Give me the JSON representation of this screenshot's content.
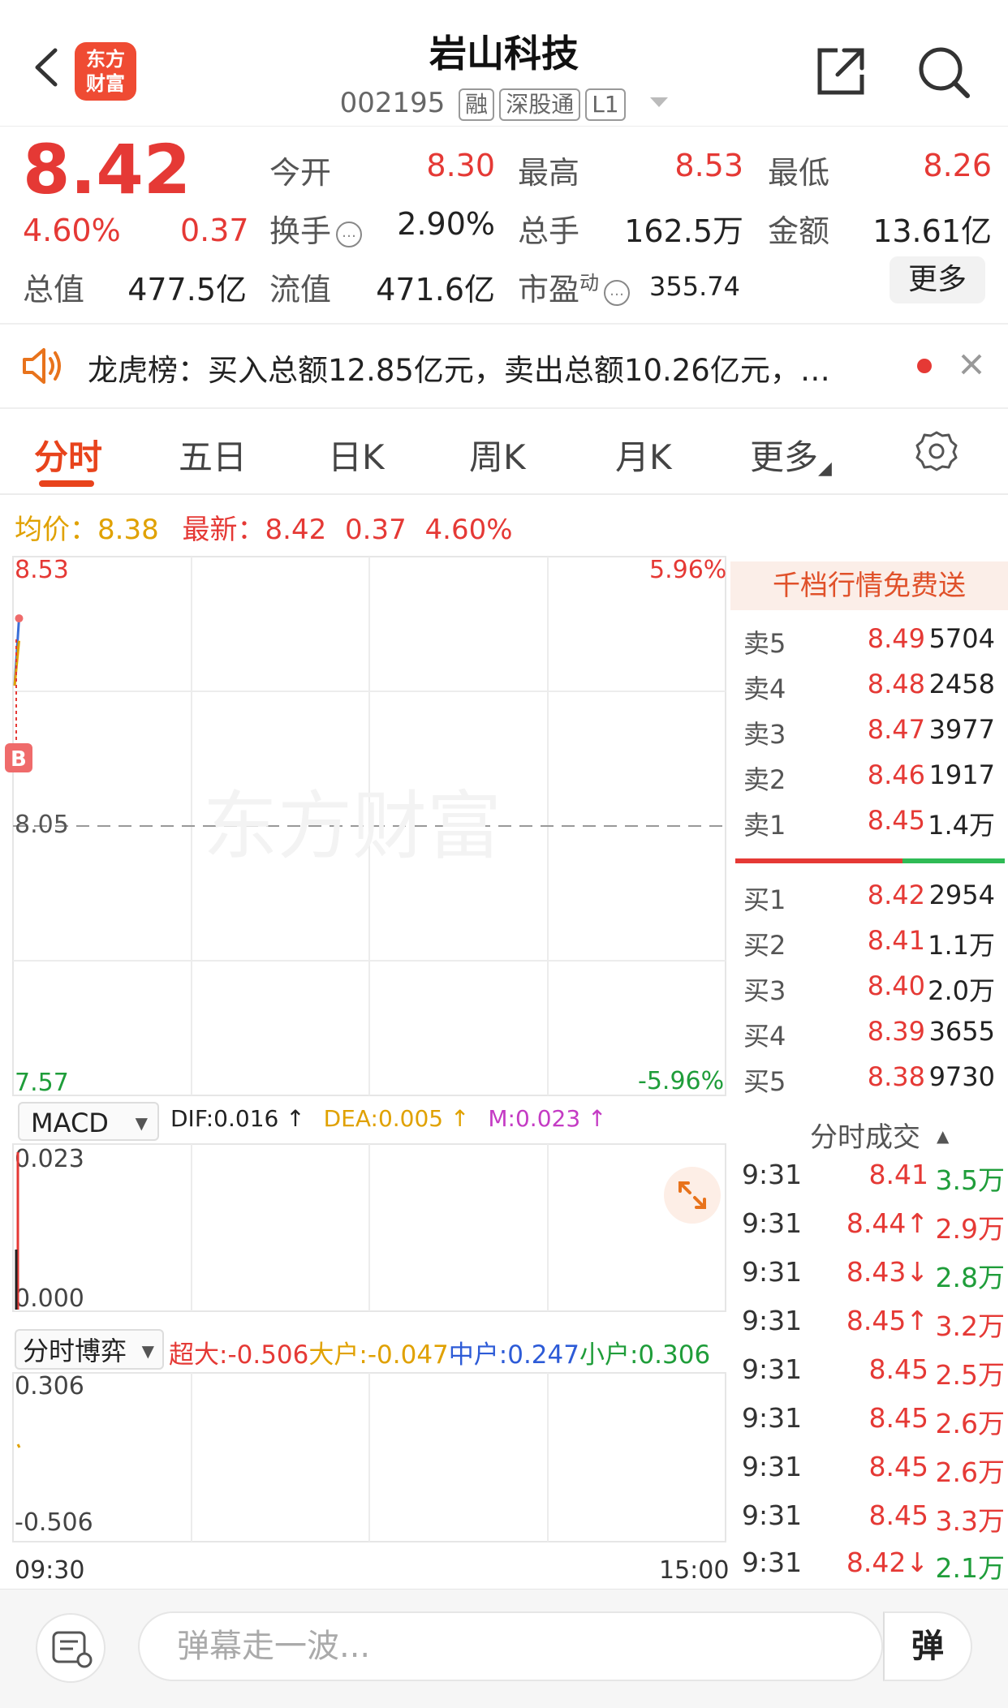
{
  "header": {
    "logo_text_line1": "东方",
    "logo_text_line2": "财富",
    "stock_name": "岩山科技",
    "stock_code": "002195",
    "tags": [
      "融",
      "深股通",
      "L1"
    ]
  },
  "quote": {
    "price": "8.42",
    "change_pct": "4.60%",
    "change": "0.37",
    "open_label": "今开",
    "open": "8.30",
    "high_label": "最高",
    "high": "8.53",
    "low_label": "最低",
    "low": "8.26",
    "turnover_label": "换手",
    "turnover": "2.90%",
    "volume_label": "总手",
    "volume": "162.5万",
    "amount_label": "金额",
    "amount": "13.61亿",
    "mktcap_label": "总值",
    "mktcap": "477.5亿",
    "float_label": "流值",
    "float_cap": "471.6亿",
    "pe_label": "市盈",
    "pe_sup": "动",
    "pe": "355.74",
    "more_label": "更多"
  },
  "notice": {
    "text": "龙虎榜：买入总额12.85亿元，卖出总额10.26亿元，…"
  },
  "tabs": [
    "分时",
    "五日",
    "日K",
    "周K",
    "月K",
    "更多"
  ],
  "avg_row": {
    "avg_label": "均价：",
    "avg": "8.38",
    "latest_label": "最新：",
    "latest": "8.42",
    "change": "0.37",
    "change_pct": "4.60%"
  },
  "chart": {
    "y_max": "8.53",
    "y_mid": "8.05",
    "y_min": "7.57",
    "pct_max": "5.96%",
    "pct_min": "-5.96%",
    "watermark": "东方财富",
    "b_marker": "B"
  },
  "chart_data": {
    "type": "line",
    "ylim": [
      7.57,
      8.53
    ],
    "reference": 8.05,
    "x": [
      "09:30",
      "09:31"
    ],
    "series": [
      {
        "values": [
          8.3,
          8.42
        ]
      },
      {
        "values": [
          8.3,
          8.38
        ]
      }
    ]
  },
  "macd": {
    "selector": "MACD",
    "dif": "DIF:0.016 ↑",
    "dea": "DEA:0.005 ↑",
    "m": "M:0.023 ↑",
    "y_top": "0.023",
    "y_bottom": "0.000"
  },
  "game": {
    "selector": "分时博弈",
    "super_large": "超大:-0.506",
    "large": "大户:-0.047",
    "medium": "中户:0.247",
    "small": "小户:0.306",
    "y_top": "0.306",
    "y_bottom": "-0.506"
  },
  "time_axis": {
    "start": "09:30",
    "end": "15:00"
  },
  "order_book": {
    "promo": "千档行情免费送",
    "asks": [
      {
        "label": "卖5",
        "price": "8.49",
        "vol": "5704"
      },
      {
        "label": "卖4",
        "price": "8.48",
        "vol": "2458"
      },
      {
        "label": "卖3",
        "price": "8.47",
        "vol": "3977"
      },
      {
        "label": "卖2",
        "price": "8.46",
        "vol": "1917"
      },
      {
        "label": "卖1",
        "price": "8.45",
        "vol": "1.4万"
      }
    ],
    "bids": [
      {
        "label": "买1",
        "price": "8.42",
        "vol": "2954"
      },
      {
        "label": "买2",
        "price": "8.41",
        "vol": "1.1万"
      },
      {
        "label": "买3",
        "price": "8.40",
        "vol": "2.0万"
      },
      {
        "label": "买4",
        "price": "8.39",
        "vol": "3655"
      },
      {
        "label": "买5",
        "price": "8.38",
        "vol": "9730"
      }
    ],
    "trades_title": "分时成交",
    "trades": [
      {
        "time": "9:31",
        "price": "8.41",
        "vol": "3.5万"
      },
      {
        "time": "9:31",
        "price": "8.44↑",
        "vol": "2.9万"
      },
      {
        "time": "9:31",
        "price": "8.43↓",
        "vol": "2.8万"
      },
      {
        "time": "9:31",
        "price": "8.45↑",
        "vol": "3.2万"
      },
      {
        "time": "9:31",
        "price": "8.45",
        "vol": "2.5万"
      },
      {
        "time": "9:31",
        "price": "8.45",
        "vol": "2.6万"
      },
      {
        "time": "9:31",
        "price": "8.45",
        "vol": "2.6万"
      },
      {
        "time": "9:31",
        "price": "8.45",
        "vol": "3.3万"
      },
      {
        "time": "9:31",
        "price": "8.42↓",
        "vol": "2.1万"
      }
    ]
  },
  "bottom": {
    "input_placeholder": "弹幕走一波...",
    "send_label": "弹"
  },
  "colors": {
    "up": "#e53935",
    "down": "#1f9d3a",
    "accent": "#e8431c"
  }
}
